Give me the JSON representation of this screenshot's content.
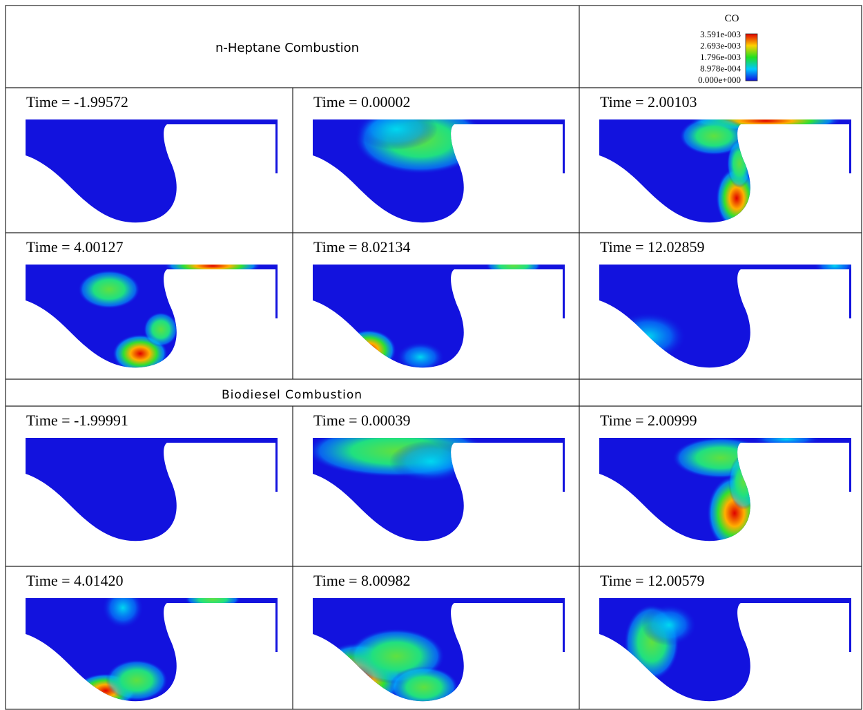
{
  "header": {
    "heptane_title": "n-Heptane Combustion",
    "biodiesel_title": "Biodiesel Combustion"
  },
  "legend": {
    "title": "CO",
    "labels": [
      "3.591e-003",
      "2.693e-003",
      "1.796e-003",
      "8.978e-004",
      "0.000e+000"
    ]
  },
  "panels": [
    {
      "time": "Time = -1.99572"
    },
    {
      "time": "Time = 0.00002"
    },
    {
      "time": "Time = 2.00103"
    },
    {
      "time": "Time = 4.00127"
    },
    {
      "time": "Time = 8.02134"
    },
    {
      "time": "Time = 12.02859"
    },
    {
      "time": "Time = -1.99991"
    },
    {
      "time": "Time = 0.00039"
    },
    {
      "time": "Time = 2.00999"
    },
    {
      "time": "Time = 4.01420"
    },
    {
      "time": "Time = 8.00982"
    },
    {
      "time": "Time = 12.00579"
    }
  ]
}
